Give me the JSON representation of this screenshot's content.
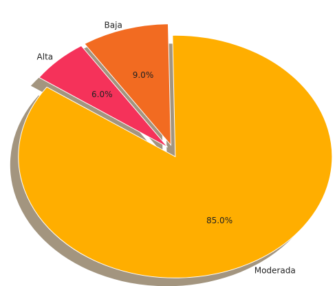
{
  "chart_data": {
    "type": "pie",
    "categories": [
      "Moderada",
      "Baja",
      "Alta"
    ],
    "values": [
      85,
      9,
      6
    ],
    "value_labels": [
      "85.0%",
      "9.0%",
      "6.0%"
    ],
    "colors": [
      "#ffae00",
      "#f26b21",
      "#f5325a"
    ],
    "shadow": true
  }
}
